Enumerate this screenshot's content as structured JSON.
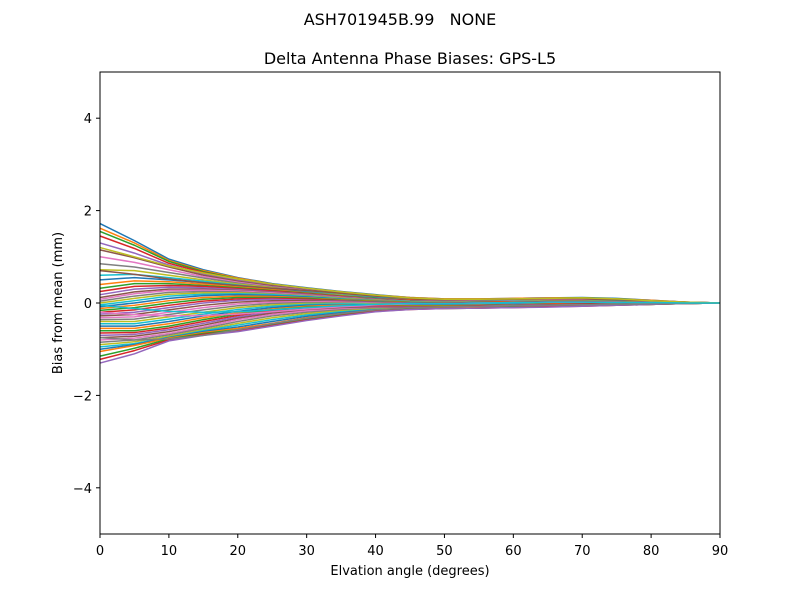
{
  "figure": {
    "suptitle": "ASH701945B.99   NONE"
  },
  "chart_data": {
    "type": "line",
    "title": "Delta Antenna Phase Biases: GPS-L5",
    "xlabel": "Elvation angle (degrees)",
    "ylabel": "Bias from mean (mm)",
    "xlim": [
      0,
      90
    ],
    "ylim": [
      -5,
      5
    ],
    "xticks": [
      0,
      10,
      20,
      30,
      40,
      50,
      60,
      70,
      80,
      90
    ],
    "yticks": [
      -4,
      -2,
      0,
      2,
      4
    ],
    "ytick_labels": [
      "−4",
      "−2",
      "0",
      "2",
      "4"
    ],
    "grid": false,
    "legend": "none",
    "elevation_step_deg": 5,
    "x": [
      0,
      5,
      10,
      15,
      20,
      25,
      30,
      35,
      40,
      45,
      50,
      55,
      60,
      65,
      70,
      75,
      80,
      85,
      90
    ],
    "colors": [
      "#1f77b4",
      "#ff7f0e",
      "#2ca02c",
      "#d62728",
      "#9467bd",
      "#8c564b",
      "#e377c2",
      "#7f7f7f",
      "#bcbd22",
      "#17becf"
    ],
    "series": [
      {
        "values": [
          1.72,
          1.35,
          0.95,
          0.72,
          0.55,
          0.42,
          0.33,
          0.25,
          0.18,
          0.12,
          0.09,
          0.09,
          0.1,
          0.11,
          0.12,
          0.1,
          0.06,
          0.02,
          0.0
        ]
      },
      {
        "values": [
          1.62,
          1.3,
          0.92,
          0.7,
          0.54,
          0.41,
          0.32,
          0.24,
          0.17,
          0.12,
          0.09,
          0.09,
          0.1,
          0.11,
          0.11,
          0.09,
          0.06,
          0.02,
          0.0
        ]
      },
      {
        "values": [
          1.55,
          1.25,
          0.9,
          0.68,
          0.52,
          0.4,
          0.31,
          0.23,
          0.16,
          0.11,
          0.08,
          0.08,
          0.09,
          0.1,
          0.11,
          0.09,
          0.05,
          0.02,
          0.0
        ]
      },
      {
        "values": [
          1.45,
          1.18,
          0.86,
          0.66,
          0.51,
          0.39,
          0.3,
          0.22,
          0.16,
          0.11,
          0.08,
          0.08,
          0.09,
          0.1,
          0.1,
          0.08,
          0.05,
          0.02,
          0.0
        ]
      },
      {
        "values": [
          1.3,
          1.08,
          0.82,
          0.63,
          0.49,
          0.38,
          0.29,
          0.22,
          0.15,
          0.1,
          0.08,
          0.08,
          0.09,
          0.1,
          0.1,
          0.08,
          0.05,
          0.02,
          0.0
        ]
      },
      {
        "values": [
          1.15,
          0.98,
          0.78,
          0.6,
          0.47,
          0.37,
          0.28,
          0.21,
          0.14,
          0.1,
          0.07,
          0.07,
          0.08,
          0.09,
          0.1,
          0.08,
          0.05,
          0.02,
          0.0
        ]
      },
      {
        "values": [
          1.0,
          0.88,
          0.72,
          0.57,
          0.45,
          0.35,
          0.27,
          0.2,
          0.14,
          0.09,
          0.07,
          0.07,
          0.08,
          0.09,
          0.09,
          0.07,
          0.04,
          0.01,
          0.0
        ]
      },
      {
        "values": [
          0.85,
          0.78,
          0.66,
          0.54,
          0.43,
          0.34,
          0.26,
          0.19,
          0.13,
          0.09,
          0.07,
          0.07,
          0.08,
          0.09,
          0.09,
          0.07,
          0.04,
          0.01,
          0.0
        ]
      },
      {
        "values": [
          0.72,
          0.7,
          0.6,
          0.5,
          0.41,
          0.33,
          0.25,
          0.18,
          0.12,
          0.08,
          0.06,
          0.06,
          0.07,
          0.08,
          0.08,
          0.07,
          0.04,
          0.01,
          0.0
        ]
      },
      {
        "values": [
          0.6,
          0.62,
          0.55,
          0.47,
          0.39,
          0.31,
          0.24,
          0.17,
          0.12,
          0.08,
          0.06,
          0.06,
          0.07,
          0.08,
          0.08,
          0.06,
          0.04,
          0.01,
          0.0
        ]
      },
      {
        "values": [
          0.5,
          0.55,
          0.5,
          0.44,
          0.37,
          0.3,
          0.23,
          0.16,
          0.11,
          0.07,
          0.05,
          0.06,
          0.07,
          0.08,
          0.08,
          0.06,
          0.04,
          0.01,
          0.0
        ]
      },
      {
        "values": [
          0.4,
          0.48,
          0.46,
          0.41,
          0.35,
          0.29,
          0.22,
          0.16,
          0.1,
          0.07,
          0.05,
          0.05,
          0.06,
          0.07,
          0.07,
          0.06,
          0.03,
          0.01,
          0.0
        ]
      },
      {
        "values": [
          0.32,
          0.42,
          0.42,
          0.38,
          0.33,
          0.27,
          0.21,
          0.15,
          0.1,
          0.06,
          0.05,
          0.05,
          0.06,
          0.07,
          0.07,
          0.06,
          0.03,
          0.01,
          0.0
        ]
      },
      {
        "values": [
          0.25,
          0.36,
          0.38,
          0.36,
          0.31,
          0.26,
          0.2,
          0.14,
          0.09,
          0.06,
          0.04,
          0.05,
          0.06,
          0.07,
          0.07,
          0.05,
          0.03,
          0.01,
          0.0
        ]
      },
      {
        "values": [
          0.18,
          0.3,
          0.34,
          0.33,
          0.29,
          0.24,
          0.19,
          0.13,
          0.09,
          0.05,
          0.04,
          0.04,
          0.05,
          0.06,
          0.06,
          0.05,
          0.03,
          0.01,
          0.0
        ]
      },
      {
        "values": [
          0.12,
          0.24,
          0.3,
          0.3,
          0.27,
          0.23,
          0.18,
          0.12,
          0.08,
          0.05,
          0.03,
          0.04,
          0.05,
          0.06,
          0.06,
          0.05,
          0.03,
          0.01,
          0.0
        ]
      },
      {
        "values": [
          0.08,
          0.2,
          0.27,
          0.28,
          0.26,
          0.22,
          0.17,
          0.12,
          0.07,
          0.04,
          0.03,
          0.04,
          0.05,
          0.06,
          0.06,
          0.05,
          0.03,
          0.01,
          0.0
        ]
      },
      {
        "values": [
          0.04,
          0.15,
          0.23,
          0.25,
          0.24,
          0.2,
          0.16,
          0.11,
          0.07,
          0.04,
          0.03,
          0.03,
          0.04,
          0.05,
          0.05,
          0.04,
          0.02,
          0.01,
          0.0
        ]
      },
      {
        "values": [
          0.0,
          0.1,
          0.19,
          0.22,
          0.22,
          0.19,
          0.15,
          0.1,
          0.06,
          0.03,
          0.02,
          0.03,
          0.04,
          0.05,
          0.05,
          0.04,
          0.02,
          0.01,
          0.0
        ]
      },
      {
        "values": [
          -0.04,
          0.05,
          0.15,
          0.19,
          0.2,
          0.18,
          0.14,
          0.09,
          0.05,
          0.03,
          0.02,
          0.03,
          0.04,
          0.05,
          0.05,
          0.04,
          0.02,
          0.01,
          0.0
        ]
      },
      {
        "values": [
          -0.08,
          0.0,
          0.1,
          0.16,
          0.18,
          0.16,
          0.13,
          0.08,
          0.05,
          0.02,
          0.01,
          0.02,
          0.03,
          0.04,
          0.04,
          0.03,
          0.02,
          0.0,
          0.0
        ]
      },
      {
        "values": [
          -0.12,
          -0.05,
          0.05,
          0.12,
          0.15,
          0.14,
          0.11,
          0.07,
          0.04,
          0.02,
          0.01,
          0.02,
          0.03,
          0.04,
          0.04,
          0.03,
          0.02,
          0.0,
          0.0
        ]
      },
      {
        "values": [
          -0.16,
          -0.1,
          0.0,
          0.08,
          0.12,
          0.12,
          0.1,
          0.06,
          0.03,
          0.01,
          0.0,
          0.01,
          0.02,
          0.03,
          0.03,
          0.03,
          0.01,
          0.0,
          0.0
        ]
      },
      {
        "values": [
          -0.2,
          -0.15,
          -0.05,
          0.04,
          0.09,
          0.1,
          0.08,
          0.05,
          0.02,
          0.0,
          0.0,
          0.01,
          0.02,
          0.03,
          0.03,
          0.02,
          0.01,
          0.0,
          0.0
        ]
      },
      {
        "values": [
          -0.24,
          -0.2,
          -0.1,
          0.0,
          0.06,
          0.08,
          0.06,
          0.04,
          0.02,
          0.0,
          -0.01,
          0.0,
          0.01,
          0.02,
          0.02,
          0.02,
          0.01,
          0.0,
          0.0
        ]
      },
      {
        "values": [
          -0.28,
          -0.25,
          -0.15,
          -0.05,
          0.02,
          0.05,
          0.05,
          0.03,
          0.01,
          -0.01,
          -0.01,
          0.0,
          0.01,
          0.02,
          0.02,
          0.02,
          0.01,
          0.0,
          0.0
        ]
      },
      {
        "values": [
          -0.32,
          -0.3,
          -0.2,
          -0.1,
          -0.02,
          0.02,
          0.03,
          0.02,
          0.0,
          -0.02,
          -0.02,
          -0.01,
          0.0,
          0.01,
          0.01,
          0.01,
          0.01,
          0.0,
          0.0
        ]
      },
      {
        "values": [
          -0.36,
          -0.35,
          -0.25,
          -0.15,
          -0.06,
          -0.01,
          0.01,
          0.0,
          -0.01,
          -0.02,
          -0.03,
          -0.02,
          -0.01,
          0.0,
          0.01,
          0.01,
          0.0,
          0.0,
          0.0
        ]
      },
      {
        "values": [
          -0.4,
          -0.4,
          -0.3,
          -0.2,
          -0.1,
          -0.04,
          -0.01,
          -0.01,
          -0.02,
          -0.03,
          -0.03,
          -0.02,
          -0.01,
          0.0,
          0.0,
          0.0,
          0.0,
          0.0,
          0.0
        ]
      },
      {
        "values": [
          -0.45,
          -0.45,
          -0.35,
          -0.24,
          -0.14,
          -0.07,
          -0.03,
          -0.02,
          -0.03,
          -0.04,
          -0.04,
          -0.03,
          -0.02,
          -0.01,
          0.0,
          0.0,
          0.0,
          0.0,
          0.0
        ]
      },
      {
        "values": [
          -0.5,
          -0.5,
          -0.4,
          -0.28,
          -0.18,
          -0.1,
          -0.05,
          -0.04,
          -0.04,
          -0.05,
          -0.05,
          -0.04,
          -0.03,
          -0.02,
          -0.01,
          -0.01,
          0.0,
          0.0,
          0.0
        ]
      },
      {
        "values": [
          -0.55,
          -0.55,
          -0.45,
          -0.32,
          -0.21,
          -0.13,
          -0.07,
          -0.05,
          -0.05,
          -0.06,
          -0.06,
          -0.05,
          -0.04,
          -0.02,
          -0.01,
          -0.01,
          -0.01,
          0.0,
          0.0
        ]
      },
      {
        "values": [
          -0.6,
          -0.6,
          -0.5,
          -0.36,
          -0.24,
          -0.15,
          -0.09,
          -0.07,
          -0.06,
          -0.07,
          -0.07,
          -0.06,
          -0.04,
          -0.03,
          -0.02,
          -0.01,
          -0.01,
          0.0,
          0.0
        ]
      },
      {
        "values": [
          -0.65,
          -0.64,
          -0.54,
          -0.4,
          -0.27,
          -0.17,
          -0.11,
          -0.08,
          -0.07,
          -0.08,
          -0.08,
          -0.06,
          -0.05,
          -0.03,
          -0.02,
          -0.02,
          -0.01,
          0.0,
          0.0
        ]
      },
      {
        "values": [
          -0.7,
          -0.68,
          -0.58,
          -0.44,
          -0.3,
          -0.2,
          -0.13,
          -0.1,
          -0.09,
          -0.09,
          -0.09,
          -0.07,
          -0.05,
          -0.04,
          -0.03,
          -0.02,
          -0.01,
          0.0,
          0.0
        ]
      },
      {
        "values": [
          -0.75,
          -0.72,
          -0.62,
          -0.48,
          -0.33,
          -0.22,
          -0.15,
          -0.11,
          -0.1,
          -0.1,
          -0.1,
          -0.08,
          -0.06,
          -0.04,
          -0.03,
          -0.02,
          -0.01,
          0.0,
          0.0
        ]
      },
      {
        "values": [
          -0.8,
          -0.76,
          -0.66,
          -0.52,
          -0.36,
          -0.25,
          -0.17,
          -0.13,
          -0.11,
          -0.11,
          -0.1,
          -0.08,
          -0.06,
          -0.05,
          -0.04,
          -0.03,
          -0.02,
          -0.01,
          0.0
        ]
      },
      {
        "values": [
          -0.85,
          -0.8,
          -0.69,
          -0.55,
          -0.4,
          -0.28,
          -0.2,
          -0.15,
          -0.12,
          -0.11,
          -0.11,
          -0.09,
          -0.07,
          -0.05,
          -0.04,
          -0.03,
          -0.02,
          -0.01,
          0.0
        ]
      },
      {
        "values": [
          -0.9,
          -0.84,
          -0.72,
          -0.58,
          -0.44,
          -0.32,
          -0.23,
          -0.17,
          -0.13,
          -0.12,
          -0.11,
          -0.09,
          -0.07,
          -0.06,
          -0.05,
          -0.03,
          -0.02,
          -0.01,
          0.0
        ]
      },
      {
        "values": [
          -0.95,
          -0.88,
          -0.74,
          -0.6,
          -0.48,
          -0.36,
          -0.26,
          -0.19,
          -0.14,
          -0.12,
          -0.11,
          -0.1,
          -0.08,
          -0.06,
          -0.05,
          -0.04,
          -0.02,
          -0.01,
          0.0
        ]
      },
      {
        "values": [
          -1.0,
          -0.9,
          -0.75,
          -0.62,
          -0.52,
          -0.4,
          -0.29,
          -0.21,
          -0.15,
          -0.12,
          -0.11,
          -0.1,
          -0.08,
          -0.07,
          -0.06,
          -0.04,
          -0.03,
          -0.01,
          0.0
        ]
      },
      {
        "values": [
          -1.05,
          -0.92,
          -0.76,
          -0.64,
          -0.55,
          -0.44,
          -0.32,
          -0.23,
          -0.16,
          -0.13,
          -0.11,
          -0.1,
          -0.09,
          -0.07,
          -0.06,
          -0.04,
          -0.03,
          -0.01,
          0.0
        ]
      },
      {
        "values": [
          -1.15,
          -0.98,
          -0.78,
          -0.66,
          -0.58,
          -0.47,
          -0.35,
          -0.25,
          -0.17,
          -0.13,
          -0.12,
          -0.11,
          -0.09,
          -0.08,
          -0.06,
          -0.05,
          -0.03,
          -0.01,
          0.0
        ]
      },
      {
        "values": [
          -1.22,
          -1.03,
          -0.8,
          -0.68,
          -0.6,
          -0.49,
          -0.37,
          -0.27,
          -0.18,
          -0.14,
          -0.12,
          -0.11,
          -0.1,
          -0.08,
          -0.07,
          -0.05,
          -0.03,
          -0.01,
          0.0
        ]
      },
      {
        "values": [
          -1.3,
          -1.1,
          -0.82,
          -0.7,
          -0.62,
          -0.5,
          -0.38,
          -0.28,
          -0.19,
          -0.14,
          -0.12,
          -0.11,
          -0.1,
          -0.09,
          -0.07,
          -0.05,
          -0.03,
          -0.01,
          0.0
        ]
      },
      {
        "values": [
          0.7,
          0.62,
          0.52,
          0.44,
          0.38,
          0.32,
          0.27,
          0.21,
          0.15,
          0.1,
          0.07,
          0.07,
          0.08,
          0.09,
          0.09,
          0.07,
          0.04,
          0.01,
          0.0
        ]
      },
      {
        "values": [
          -0.2,
          -0.25,
          -0.28,
          -0.27,
          -0.24,
          -0.19,
          -0.13,
          -0.08,
          -0.04,
          -0.02,
          -0.01,
          0.0,
          0.01,
          0.02,
          0.02,
          0.02,
          0.01,
          0.0,
          0.0
        ]
      },
      {
        "values": [
          -0.75,
          -0.8,
          -0.78,
          -0.7,
          -0.58,
          -0.45,
          -0.33,
          -0.23,
          -0.15,
          -0.1,
          -0.08,
          -0.07,
          -0.06,
          -0.05,
          -0.04,
          -0.03,
          -0.02,
          -0.01,
          0.0
        ]
      },
      {
        "values": [
          1.2,
          1.0,
          0.8,
          0.65,
          0.52,
          0.41,
          0.32,
          0.24,
          0.17,
          0.11,
          0.08,
          0.08,
          0.09,
          0.1,
          0.11,
          0.09,
          0.05,
          0.02,
          0.0
        ]
      },
      {
        "values": [
          -0.05,
          -0.12,
          -0.18,
          -0.2,
          -0.19,
          -0.15,
          -0.1,
          -0.06,
          -0.03,
          -0.01,
          -0.01,
          0.0,
          0.01,
          0.02,
          0.02,
          0.01,
          0.01,
          0.0,
          0.0
        ]
      }
    ]
  }
}
